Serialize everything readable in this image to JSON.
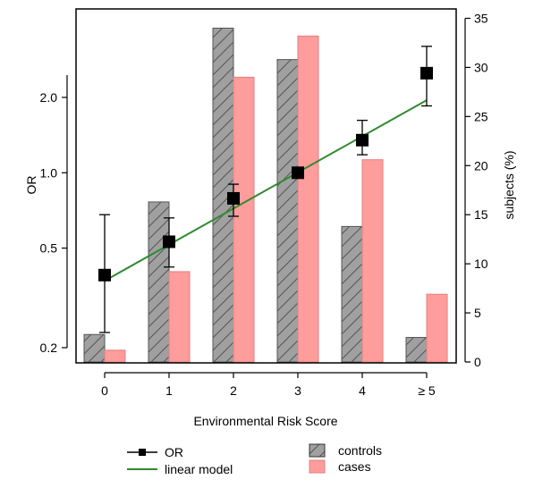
{
  "chart_data": {
    "type": "bar",
    "categories": [
      "0",
      "1",
      "2",
      "3",
      "4",
      "≥ 5"
    ],
    "xlabel": "Environmental Risk Score",
    "ylabel_left": "OR",
    "ylabel_right": "subjects (%)",
    "left_axis": {
      "scale": "log",
      "ticks": [
        0.2,
        0.5,
        1.0,
        2.0
      ],
      "tick_labels": [
        "0.2",
        "0.5",
        "1.0",
        "2.0"
      ]
    },
    "right_axis": {
      "scale": "linear",
      "ylim": [
        0,
        35
      ],
      "ticks": [
        0,
        5,
        10,
        15,
        20,
        25,
        30,
        35
      ]
    },
    "series": [
      {
        "name": "controls",
        "axis": "right",
        "kind": "bar",
        "color": "#a0a0a0",
        "pattern": "hatched",
        "values": [
          2.8,
          16.3,
          34.0,
          30.8,
          13.8,
          2.5
        ]
      },
      {
        "name": "cases",
        "axis": "right",
        "kind": "bar",
        "color": "#ff9c9c",
        "values": [
          1.2,
          9.2,
          29.0,
          33.2,
          20.6,
          6.9
        ]
      },
      {
        "name": "OR",
        "axis": "left",
        "kind": "point",
        "marker": "square",
        "color": "#000000",
        "values": [
          0.39,
          0.53,
          0.79,
          1.0,
          1.35,
          2.5
        ],
        "ci_low": [
          0.23,
          0.42,
          0.67,
          null,
          1.18,
          1.85
        ],
        "ci_high": [
          0.68,
          0.66,
          0.9,
          null,
          1.62,
          3.2
        ]
      },
      {
        "name": "linear model",
        "axis": "left",
        "kind": "line",
        "color": "#2e8b2e",
        "x": [
          "0",
          "≥ 5"
        ],
        "values": [
          0.37,
          1.95
        ]
      }
    ],
    "legend": {
      "placement": "bottom",
      "items": [
        {
          "name": "OR",
          "type": "point-line"
        },
        {
          "name": "controls",
          "type": "hatched-bar"
        },
        {
          "name": "linear model",
          "type": "line"
        },
        {
          "name": "cases",
          "type": "bar"
        }
      ]
    }
  }
}
